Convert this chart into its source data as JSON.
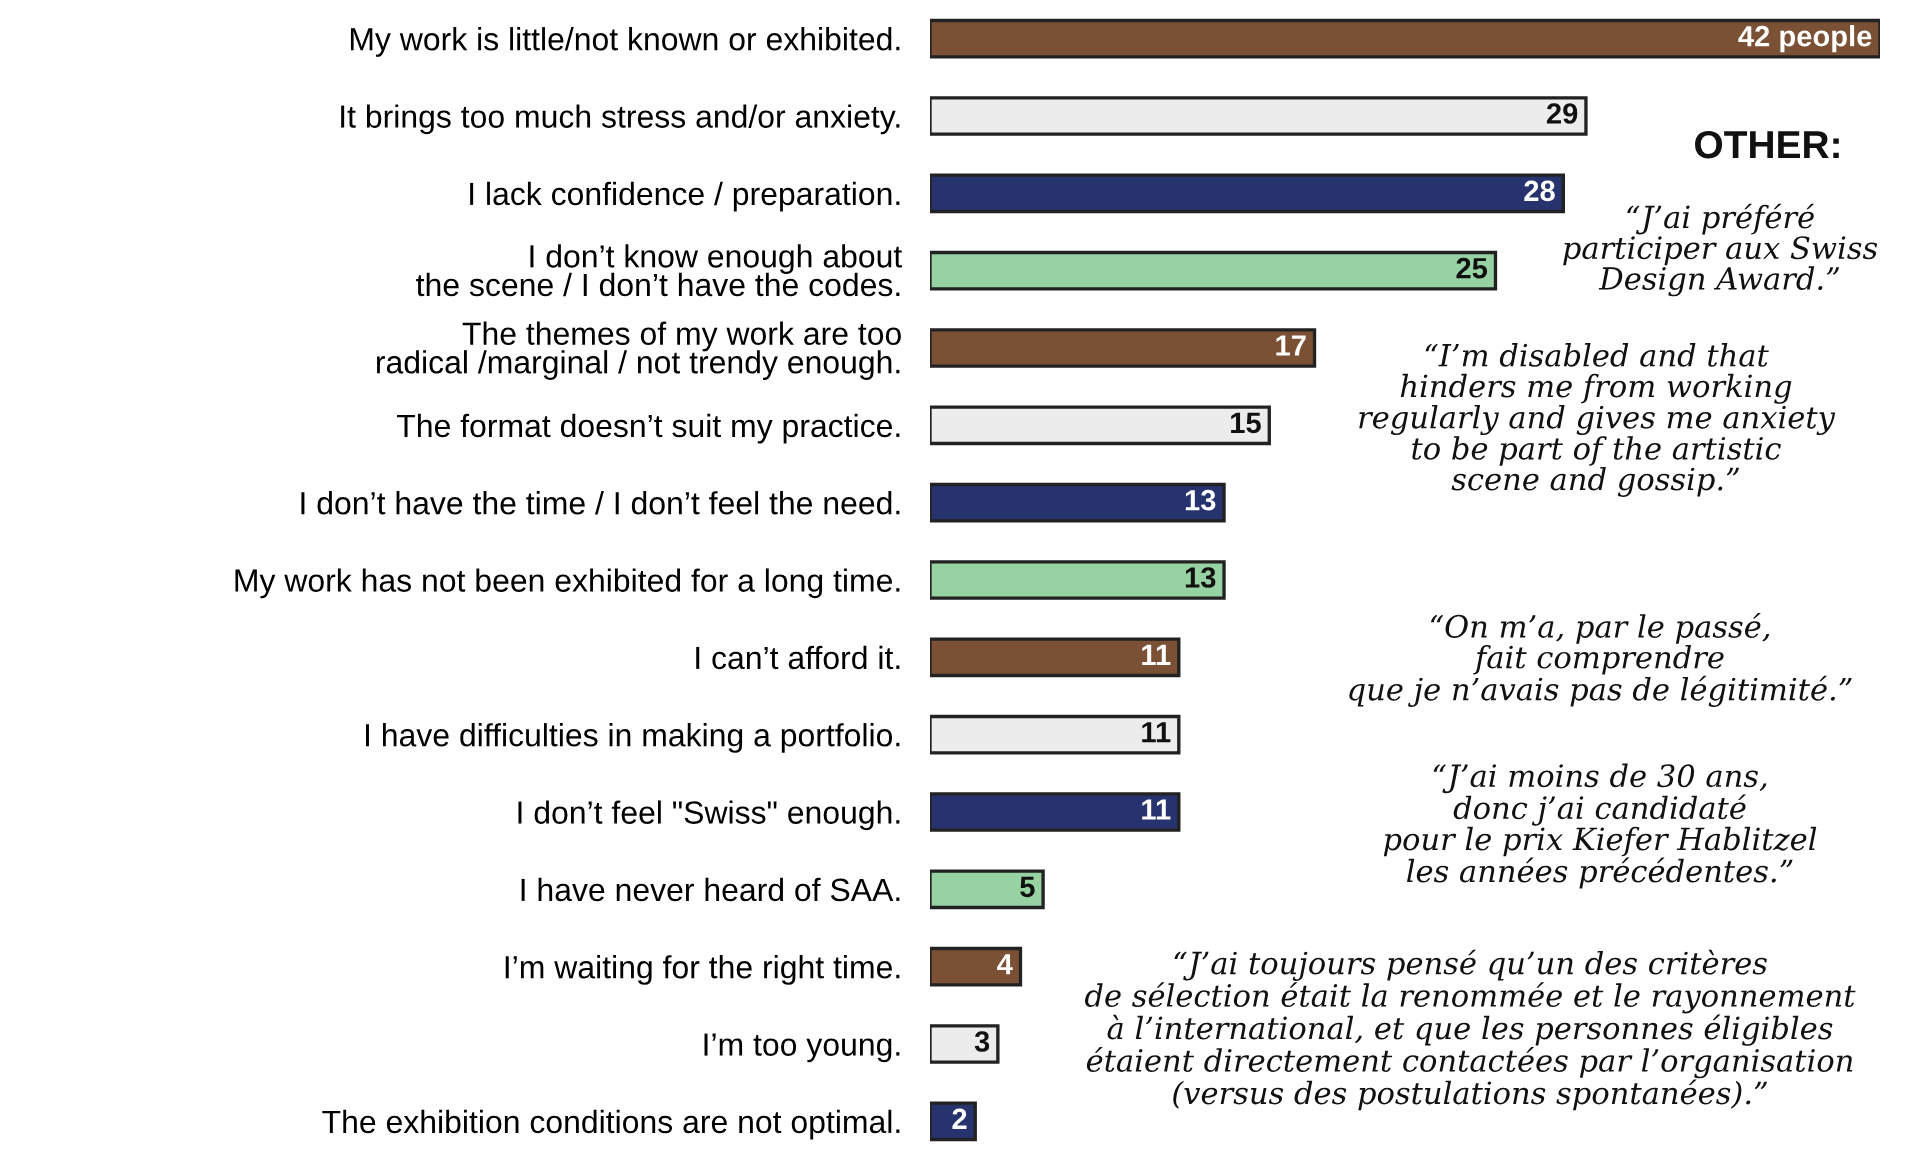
{
  "chart_data": {
    "type": "bar",
    "orientation": "horizontal",
    "categories": [
      "My work is little/not known or exhibited.",
      "It brings too much stress and/or anxiety.",
      "I lack confidence / preparation.",
      "I don’t know enough about\nthe scene / I don’t have the codes.",
      "The themes of my work are too\nradical /marginal / not trendy enough.",
      "The format doesn’t suit my practice.",
      "I don’t have the time / I don’t feel the need.",
      "My work has not been exhibited for a long time.",
      "I can’t afford it.",
      "I have difficulties in making a portfolio.",
      "I don’t feel \"Swiss\" enough.",
      "I have never heard of SAA.",
      "I’m waiting for the right time.",
      "I’m too young.",
      "The exhibition conditions are not optimal."
    ],
    "values": [
      42,
      29,
      28,
      25,
      17,
      15,
      13,
      13,
      11,
      11,
      11,
      5,
      4,
      3,
      2
    ],
    "value_labels": [
      "42 people",
      "29",
      "28",
      "25",
      "17",
      "15",
      "13",
      "13",
      "11",
      "11",
      "11",
      "5",
      "4",
      "3",
      "2"
    ],
    "colors": [
      "#7b5136",
      "#ececec",
      "#26336e",
      "#97d3a2",
      "#7b5136",
      "#ececec",
      "#26336e",
      "#97d3a2",
      "#7b5136",
      "#ececec",
      "#26336e",
      "#97d3a2",
      "#7b5136",
      "#ececec",
      "#26336e"
    ],
    "annotations": [
      "OTHER:",
      "“J’ai préféré\nparticiper aux Swiss\nDesign Award.”",
      "“I’m disabled and that\nhinders me from working\nregularly and gives me anxiety\nto be part of the artistic\nscene and gossip.”",
      "“On m’a, par le passé,\nfait comprendre\nque je n’avais pas de légitimité.”",
      "“J’ai moins de 30 ans,\ndonc j’ai candidaté\npour le prix Kiefer Hablitzel\nles années précédentes.”",
      "“J’ai toujours pensé qu’un des critères\nde sélection était la renommée et le rayonnement\nà l’international, et que les personnes éligibles\nétaient directement contactées par l’organisation\n(versus des postulations spontanées).”"
    ]
  }
}
